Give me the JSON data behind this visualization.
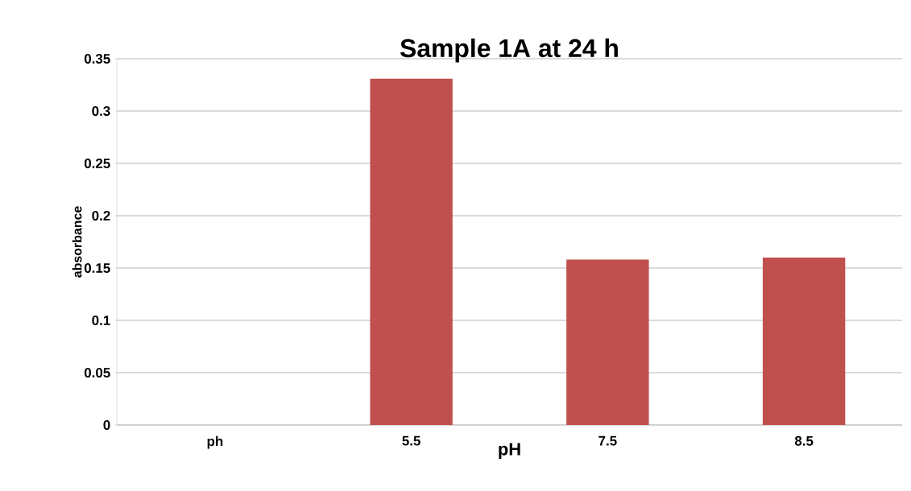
{
  "chart_data": {
    "type": "bar",
    "title": "Sample 1A at 24 h",
    "xlabel": "pH",
    "ylabel": "absorbance",
    "categories": [
      "ph",
      "5.5",
      "7.5",
      "8.5"
    ],
    "values": [
      null,
      0.331,
      0.158,
      0.16
    ],
    "color": "#c0504d",
    "ylim": [
      0,
      0.35
    ],
    "yticks": [
      0,
      0.05,
      0.1,
      0.15,
      0.2,
      0.25,
      0.3,
      0.35
    ],
    "grid": "y"
  }
}
